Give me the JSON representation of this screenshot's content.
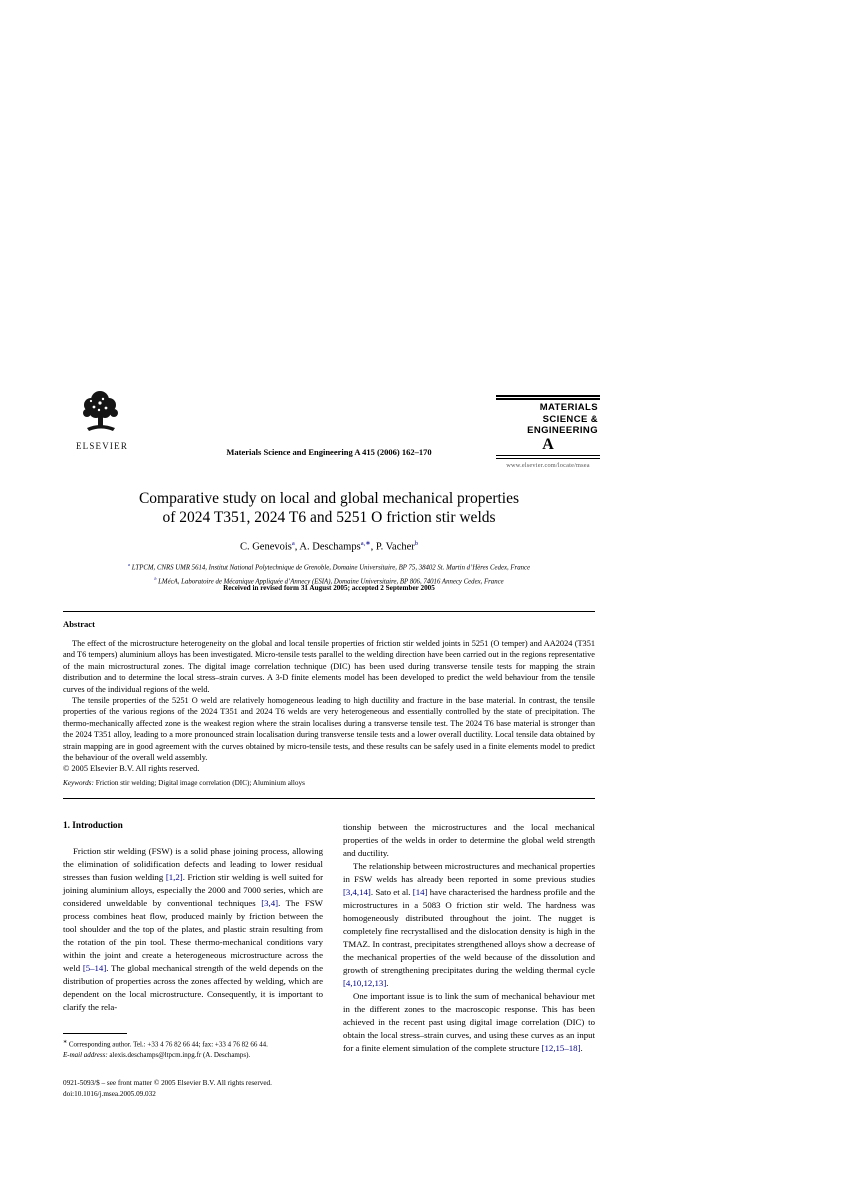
{
  "colors": {
    "reference_link": "#00008c",
    "text": "#000000",
    "background": "#ffffff"
  },
  "header": {
    "elsevier_logo_text": "ELSEVIER",
    "journal_line": "Materials Science and Engineering A 415 (2006) 162–170",
    "journal_logo": {
      "line1": "MATERIALS",
      "line2": "SCIENCE &",
      "line3": "ENGINEERING",
      "letter": "A",
      "url": "www.elsevier.com/locate/msea"
    }
  },
  "title": {
    "line1": "Comparative study on local and global mechanical properties",
    "line2": "of 2024 T351, 2024 T6 and 5251 O friction stir welds"
  },
  "authors_segments": [
    {
      "t": "C. Genevois"
    },
    {
      "t": "a",
      "c": "sup"
    },
    {
      "t": ", A. Deschamps"
    },
    {
      "t": "a,∗",
      "c": "sup"
    },
    {
      "t": ", P. Vacher"
    },
    {
      "t": "b",
      "c": "sup"
    }
  ],
  "affiliations": {
    "aff1_segments": [
      {
        "t": "a",
        "c": "sup"
      },
      {
        "t": " LTPCM, CNRS UMR 5614, Institut National Polytechnique de Grenoble, Domaine Universitaire, BP 75, 38402 St. Martin d’Hères Cedex, France"
      }
    ],
    "aff2_segments": [
      {
        "t": "b",
        "c": "sup"
      },
      {
        "t": " LMécA, Laboratoire de Mécanique Appliquée d’Annecy (ESIA), Domaine Universitaire, BP 806, 74016 Annecy Cedex, France"
      }
    ]
  },
  "received_line": "Received in revised form 31 August 2005; accepted 2 September 2005",
  "abstract": {
    "heading": "Abstract",
    "p1": "The effect of the microstructure heterogeneity on the global and local tensile properties of friction stir welded joints in 5251 (O temper) and AA2024 (T351 and T6 tempers) aluminium alloys has been investigated. Micro-tensile tests parallel to the welding direction have been carried out in the regions representative of the main microstructural zones. The digital image correlation technique (DIC) has been used during transverse tensile tests for mapping the strain distribution and to determine the local stress–strain curves. A 3-D finite elements model has been developed to predict the weld behaviour from the tensile curves of the individual regions of the weld.",
    "p2": "The tensile properties of the 5251 O weld are relatively homogeneous leading to high ductility and fracture in the base material. In contrast, the tensile properties of the various regions of the 2024 T351 and 2024 T6 welds are very heterogeneous and essentially controlled by the state of precipitation. The thermo-mechanically affected zone is the weakest region where the strain localises during a transverse tensile test. The 2024 T6 base material is stronger than the 2024 T351 alloy, leading to a more pronounced strain localisation during transverse tensile tests and a lower overall ductility. Local tensile data obtained by strain mapping are in good agreement with the curves obtained by micro-tensile tests, and these results can be safely used in a finite elements model to predict the behaviour of the overall weld assembly.",
    "copyright": "© 2005 Elsevier B.V. All rights reserved."
  },
  "keywords_segments": [
    {
      "t": "Keywords:",
      "c": "em-italic"
    },
    {
      "t": "  Friction stir welding; Digital image correlation (DIC); Aluminium alloys"
    }
  ],
  "introduction": {
    "heading": "1. Introduction",
    "p1_segments": [
      {
        "t": "Friction stir welding (FSW) is a solid phase joining process, allowing the elimination of solidification defects and leading to lower residual stresses than fusion welding "
      },
      {
        "t": "[1,2]",
        "c": "ref"
      },
      {
        "t": ". Friction stir welding is well suited for joining aluminium alloys, especially the 2000 and 7000 series, which are considered unweldable by conventional techniques "
      },
      {
        "t": "[3,4]",
        "c": "ref"
      },
      {
        "t": ". The FSW process combines heat flow, produced mainly by friction between the tool shoulder and the top of the plates, and plastic strain resulting from the rotation of the pin tool. These thermo-mechanical conditions vary within the joint and create a heterogeneous microstructure across the weld "
      },
      {
        "t": "[5–14]",
        "c": "ref"
      },
      {
        "t": ". The global mechanical strength of the weld depends on the distribution of properties across the zones affected by welding, which are dependent on the local microstructure. Consequently, it is important to clarify the rela-"
      }
    ]
  },
  "right_column": {
    "p1": "tionship between the microstructures and the local mechanical properties of the welds in order to determine the global weld strength and ductility.",
    "p2_segments": [
      {
        "t": "The relationship between microstructures and mechanical properties in FSW welds has already been reported in some previous studies "
      },
      {
        "t": "[3,4,14]",
        "c": "ref"
      },
      {
        "t": ". Sato et al. "
      },
      {
        "t": "[14]",
        "c": "ref"
      },
      {
        "t": " have characterised the hardness profile and the microstructures in a 5083 O friction stir weld. The hardness was homogeneously distributed throughout the joint. The nugget is completely fine recrystallised and the dislocation density is high in the TMAZ. In contrast, precipitates strengthened alloys show a decrease of the mechanical properties of the weld because of the dissolution and growth of strengthening precipitates during the welding thermal cycle "
      },
      {
        "t": "[4,10,12,13]",
        "c": "ref"
      },
      {
        "t": "."
      }
    ],
    "p3_segments": [
      {
        "t": "One important issue is to link the sum of mechanical behaviour met in the different zones to the macroscopic response. This has been achieved in the recent past using digital image correlation (DIC) to obtain the local stress–strain curves, and using these curves as an input for a finite element simulation of the complete structure "
      },
      {
        "t": "[12,15–18]",
        "c": "ref"
      },
      {
        "t": "."
      }
    ]
  },
  "footnote": {
    "line1_segments": [
      {
        "t": "∗",
        "c": "fnsup"
      },
      {
        "t": " Corresponding author. Tel.: +33 4 76 82 66 44; fax: +33 4 76 82 66 44."
      }
    ],
    "line2_segments": [
      {
        "t": "E-mail address:",
        "c": "em-italic"
      },
      {
        "t": " alexis.deschamps@ltpcm.inpg.fr (A. Deschamps)."
      }
    ]
  },
  "imprint": {
    "line1": "0921-5093/$ – see front matter © 2005 Elsevier B.V. All rights reserved.",
    "line2": "doi:10.1016/j.msea.2005.09.032"
  }
}
